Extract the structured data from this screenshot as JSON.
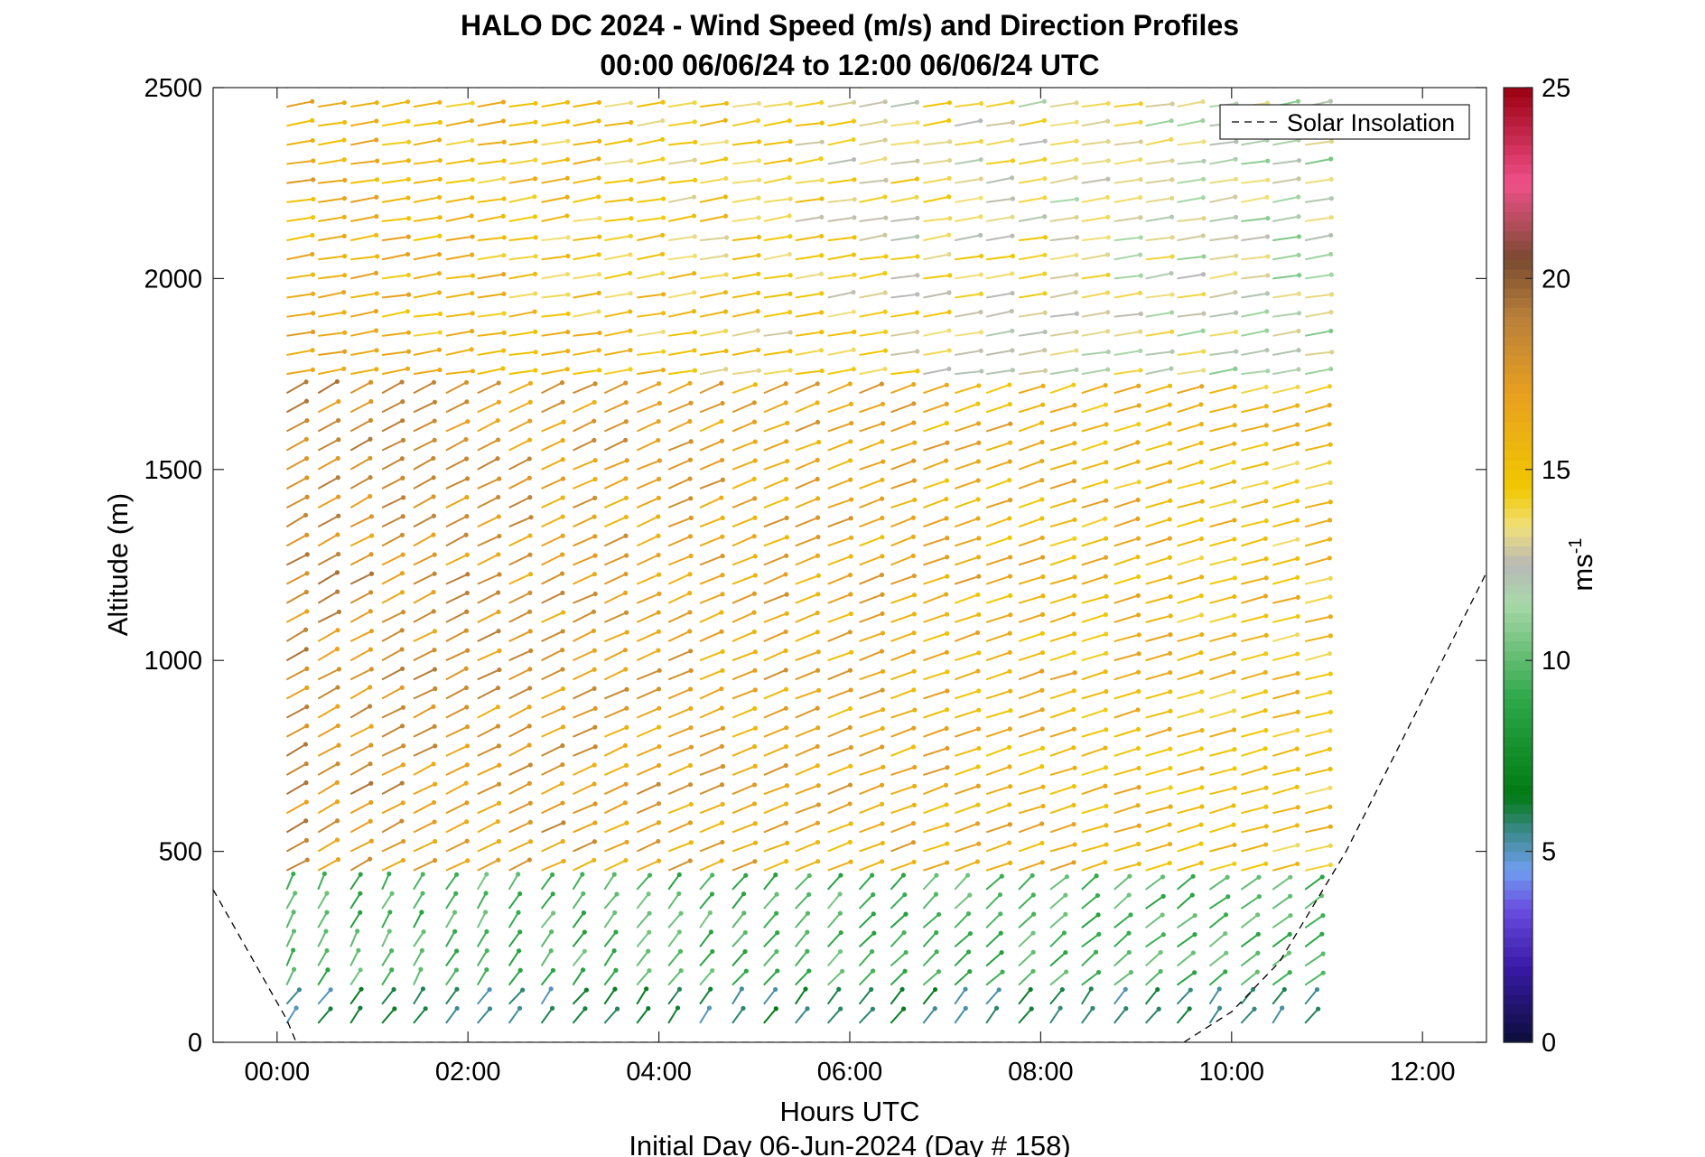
{
  "chart_data": {
    "type": "wind-barb profile",
    "title": "HALO DC 2024 - Wind Speed (m/s) and Direction Profiles",
    "subtitle": "00:00 06/06/24 to 12:00 06/06/24  UTC",
    "xlabel": "Hours UTC",
    "ylabel": "Altitude (m)",
    "footer": "Initial Day 06-Jun-2024 (Day # 158)",
    "xlim": [
      -0.67,
      12.67
    ],
    "ylim": [
      0,
      2500
    ],
    "x_ticks": [
      0,
      2,
      4,
      6,
      8,
      10,
      12
    ],
    "x_tick_labels": [
      "00:00",
      "02:00",
      "04:00",
      "06:00",
      "08:00",
      "10:00",
      "12:00"
    ],
    "y_ticks": [
      0,
      500,
      1000,
      1500,
      2000,
      2500
    ],
    "y_tick_labels": [
      "0",
      "500",
      "1000",
      "1500",
      "2000",
      "2500"
    ],
    "profile_times_h": [
      0.1,
      0.43,
      0.77,
      1.1,
      1.43,
      1.77,
      2.1,
      2.43,
      2.77,
      3.1,
      3.43,
      3.77,
      4.1,
      4.43,
      4.77,
      5.1,
      5.43,
      5.77,
      6.1,
      6.43,
      6.77,
      7.1,
      7.43,
      7.77,
      8.1,
      8.43,
      8.77,
      9.1,
      9.43,
      9.77,
      10.1,
      10.43,
      10.77
    ],
    "altitude_step_m": 50,
    "max_altitude_m": 2500,
    "wind_speed_ms": {
      "near_surface_0_100m": 5,
      "low_level_100_400m": 8.5,
      "mid_level_400_1700m_early": 18,
      "mid_level_400_1700m_late": 15,
      "upper_level_1700_2500m": 12
    },
    "colorbar": {
      "label": "ms",
      "label_superscript": "-1",
      "range": [
        0,
        25
      ],
      "ticks": [
        0,
        5,
        10,
        15,
        20,
        25
      ],
      "tick_labels": [
        "0",
        "5",
        "10",
        "15",
        "20",
        "25"
      ],
      "stops": [
        {
          "v": 0,
          "c": "#0b0d3a"
        },
        {
          "v": 2,
          "c": "#3a1aa8"
        },
        {
          "v": 3.5,
          "c": "#6a4ee0"
        },
        {
          "v": 4.5,
          "c": "#6f9ef0"
        },
        {
          "v": 5.5,
          "c": "#3b8a8c"
        },
        {
          "v": 6.5,
          "c": "#007a10"
        },
        {
          "v": 9,
          "c": "#2ea84a"
        },
        {
          "v": 11.5,
          "c": "#a8d8a8"
        },
        {
          "v": 12.5,
          "c": "#b8b8b8"
        },
        {
          "v": 13.5,
          "c": "#f0e07a"
        },
        {
          "v": 14.5,
          "c": "#f0c800"
        },
        {
          "v": 17,
          "c": "#e8a020"
        },
        {
          "v": 19,
          "c": "#b8803a"
        },
        {
          "v": 20.5,
          "c": "#7a4a30"
        },
        {
          "v": 22.5,
          "c": "#f0508a"
        },
        {
          "v": 25,
          "c": "#9a0010"
        }
      ]
    },
    "legend": {
      "location": "top-right",
      "entries": [
        {
          "label": "Solar Insolation",
          "style": "dashed",
          "color": "#000000"
        }
      ]
    },
    "solar_insolation_line": {
      "points": [
        [
          -0.67,
          400
        ],
        [
          0.1,
          60
        ],
        [
          0.2,
          0
        ],
        [
          9.5,
          0
        ],
        [
          10.0,
          80
        ],
        [
          10.5,
          210
        ],
        [
          11.2,
          500
        ],
        [
          12.67,
          1230
        ]
      ]
    }
  }
}
